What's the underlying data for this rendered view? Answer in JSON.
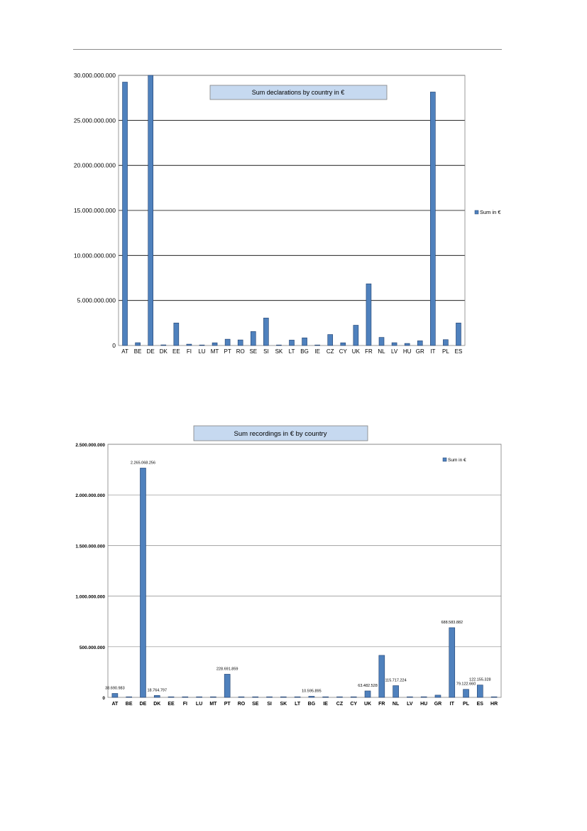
{
  "chart_data": [
    {
      "type": "bar",
      "title": "Sum declarations by country in €",
      "xlabel": "",
      "ylabel": "",
      "ylim": [
        0,
        30000000000
      ],
      "yticks": [
        "0",
        "5.000.000.000",
        "10.000.000.000",
        "15.000.000.000",
        "20.000.000.000",
        "25.000.000.000",
        "30.000.000.000"
      ],
      "grid": true,
      "legend_position": "right",
      "categories": [
        "AT",
        "BE",
        "DE",
        "DK",
        "EE",
        "FI",
        "LU",
        "MT",
        "PT",
        "RO",
        "SE",
        "SI",
        "SK",
        "LT",
        "BG",
        "IE",
        "CZ",
        "CY",
        "UK",
        "FR",
        "NL",
        "LV",
        "HU",
        "GR",
        "IT",
        "PL",
        "ES"
      ],
      "series": [
        {
          "name": "Sum in €",
          "color": "#4f81bd",
          "values": [
            29250000000,
            310000000,
            30000000000,
            70000000,
            2500000000,
            150000000,
            60000000,
            300000000,
            700000000,
            620000000,
            1550000000,
            3050000000,
            60000000,
            600000000,
            850000000,
            60000000,
            1220000000,
            300000000,
            2250000000,
            6850000000,
            900000000,
            310000000,
            230000000,
            520000000,
            28150000000,
            650000000,
            2500000000
          ]
        }
      ]
    },
    {
      "type": "bar",
      "title": "Sum recordings in € by country",
      "xlabel": "",
      "ylabel": "",
      "ylim": [
        0,
        2500000000
      ],
      "yticks": [
        "0",
        "500.000.000",
        "1.000.000.000",
        "1.500.000.000",
        "2.000.000.000",
        "2.500.000.000"
      ],
      "grid": true,
      "legend_position": "top-right",
      "categories": [
        "AT",
        "BE",
        "DE",
        "DK",
        "EE",
        "FI",
        "LU",
        "MT",
        "PT",
        "RO",
        "SE",
        "SI",
        "SK",
        "LT",
        "BG",
        "IE",
        "CZ",
        "CY",
        "UK",
        "FR",
        "NL",
        "LV",
        "HU",
        "GR",
        "IT",
        "PL",
        "ES",
        "HR"
      ],
      "series": [
        {
          "name": "Sum in €",
          "color": "#4f81bd",
          "values": [
            38690983,
            1500000,
            2265068256,
            18764797,
            2000000,
            5000000,
            2000000,
            3000000,
            228691859,
            3000000,
            2000000,
            2000000,
            2000000,
            3000000,
            10595895,
            2000000,
            2000000,
            2000000,
            63482528,
            415000000,
            115717224,
            2000000,
            6000000,
            22000000,
            688583882,
            79122660,
            122155328,
            2000000
          ],
          "labels": [
            "38.690.983",
            "",
            "2.265.068.256",
            "18.764.797",
            "",
            "",
            "",
            "",
            "228.691.859",
            "",
            "",
            "",
            "",
            "",
            "10.595.895",
            "",
            "",
            "",
            "63.482.528",
            "",
            "115.717.224",
            "",
            "",
            "",
            "688.583.882",
            "79.122.660",
            "122.155.328",
            ""
          ]
        }
      ]
    }
  ]
}
